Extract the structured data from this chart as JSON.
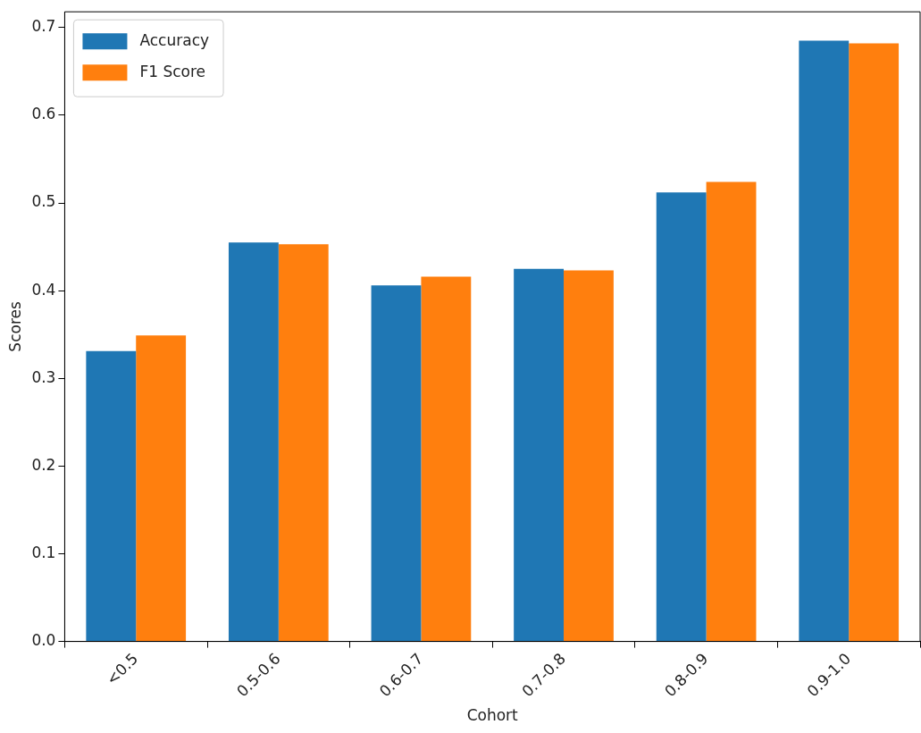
{
  "chart_data": {
    "type": "bar",
    "xlabel": "Cohort",
    "ylabel": "Scores",
    "categories": [
      "<0.5",
      "0.5-0.6",
      "0.6-0.7",
      "0.7-0.8",
      "0.8-0.9",
      "0.9-1.0"
    ],
    "series": [
      {
        "name": "Accuracy",
        "color": "#1f77b4",
        "values": [
          0.331,
          0.455,
          0.406,
          0.425,
          0.512,
          0.685
        ]
      },
      {
        "name": "F1 Score",
        "color": "#ff7f0e",
        "values": [
          0.349,
          0.453,
          0.416,
          0.423,
          0.524,
          0.682
        ]
      }
    ],
    "ylim": [
      0,
      0.718
    ],
    "yticks": [
      {
        "value": 0,
        "label": "0.0"
      },
      0.1,
      0.2,
      0.3,
      0.4,
      0.5,
      0.6,
      0.7
    ],
    "grid": false,
    "legend": "top left"
  }
}
